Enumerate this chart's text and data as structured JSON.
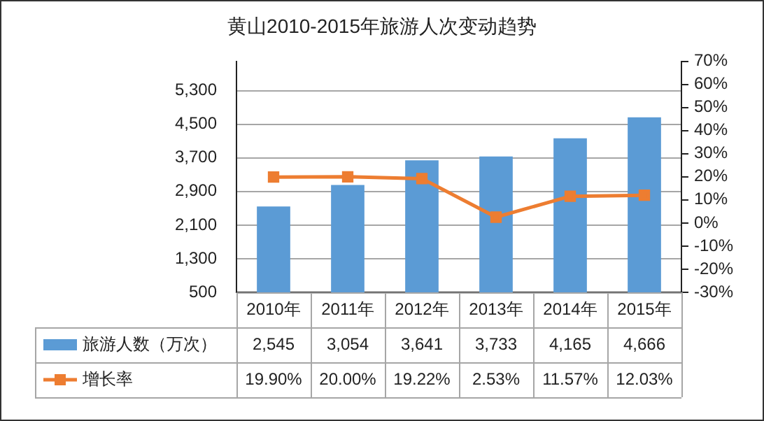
{
  "chart_data": {
    "type": "bar",
    "title": "黄山2010-2015年旅游人次变动趋势",
    "categories": [
      "2010年",
      "2011年",
      "2012年",
      "2013年",
      "2014年",
      "2015年"
    ],
    "series": [
      {
        "name": "旅游人数（万次）",
        "color": "#5b9bd5",
        "values": [
          2545,
          3054,
          3641,
          3733,
          4165,
          4666
        ],
        "value_labels": [
          "2,545",
          "3,054",
          "3,641",
          "3,733",
          "4,165",
          "4,666"
        ]
      },
      {
        "name": "增长率",
        "type": "line",
        "axis": "y2",
        "color": "#ed7d31",
        "marker": "square",
        "values": [
          19.9,
          20.0,
          19.22,
          2.53,
          11.57,
          12.03
        ],
        "value_labels": [
          "19.90%",
          "20.00%",
          "19.22%",
          "2.53%",
          "11.57%",
          "12.03%"
        ]
      }
    ],
    "ylim": [
      500,
      6000
    ],
    "yticks": [
      {
        "value": 500,
        "label": "500"
      },
      {
        "value": 1300,
        "label": "1,300"
      },
      {
        "value": 2100,
        "label": "2,100"
      },
      {
        "value": 2900,
        "label": "2,900"
      },
      {
        "value": 3700,
        "label": "3,700"
      },
      {
        "value": 4500,
        "label": "4,500"
      },
      {
        "value": 5300,
        "label": "5,300"
      }
    ],
    "y2lim": [
      -30,
      70
    ],
    "y2ticks": [
      {
        "value": -30,
        "label": "-30%"
      },
      {
        "value": -20,
        "label": "-20%"
      },
      {
        "value": -10,
        "label": "-10%"
      },
      {
        "value": 0,
        "label": "0%"
      },
      {
        "value": 10,
        "label": "10%"
      },
      {
        "value": 20,
        "label": "20%"
      },
      {
        "value": 30,
        "label": "30%"
      },
      {
        "value": 40,
        "label": "40%"
      },
      {
        "value": 50,
        "label": "50%"
      },
      {
        "value": 60,
        "label": "60%"
      },
      {
        "value": 70,
        "label": "70%"
      }
    ],
    "grid": "y",
    "legend": "bottom left"
  }
}
